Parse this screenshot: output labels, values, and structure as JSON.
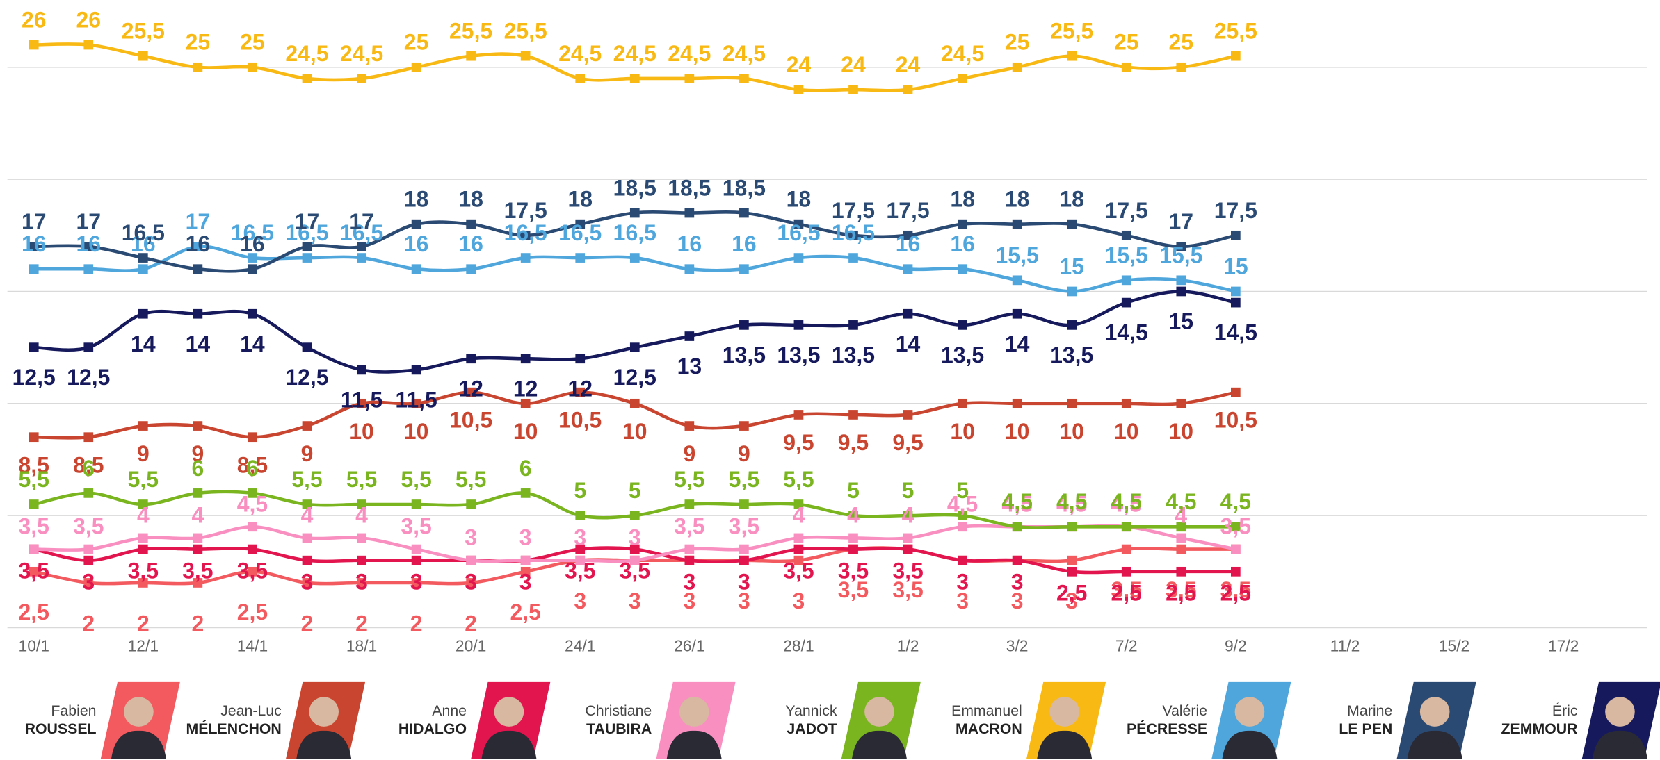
{
  "chart_data": {
    "type": "line",
    "categories": [
      "10/1",
      null,
      "12/1",
      null,
      "14/1",
      null,
      "18/1",
      null,
      "20/1",
      null,
      "24/1",
      null,
      "26/1",
      null,
      "28/1",
      null,
      "1/2",
      null,
      "3/2",
      null,
      "7/2",
      null,
      "9/2",
      null,
      "11/2",
      null,
      "15/2",
      null,
      "17/2"
    ],
    "ylim": [
      0,
      28
    ],
    "yticks": [
      0,
      5,
      10,
      15,
      20,
      25
    ],
    "grid": true,
    "series": [
      {
        "first_name": "Fabien",
        "name": "ROUSSEL",
        "color": "#f25a5f",
        "values": [
          2.5,
          2,
          2,
          2,
          2.5,
          2,
          2,
          2,
          2,
          2.5,
          3,
          3,
          3,
          3,
          3,
          3.5,
          3.5,
          3,
          3,
          3,
          3.5,
          3.5,
          3.5,
          null,
          null,
          null,
          null,
          null,
          null
        ],
        "value_labels": [
          "2,5",
          "2",
          "2",
          "2",
          "2,5",
          "2",
          "2",
          "2",
          "2",
          "2,5",
          "3",
          "3",
          "3",
          "3",
          "3",
          "3,5",
          "3,5",
          "3",
          "3",
          "3",
          "3,5",
          "3,5",
          "3,5",
          null,
          null,
          null,
          null,
          null,
          null
        ]
      },
      {
        "first_name": "Jean-Luc",
        "name": "MÉLENCHON",
        "color": "#c9452f",
        "values": [
          8.5,
          8.5,
          9,
          9,
          8.5,
          9,
          10,
          10,
          10.5,
          10,
          10.5,
          10,
          9,
          9,
          9.5,
          9.5,
          9.5,
          10,
          10,
          10,
          10,
          10,
          10.5,
          null,
          null,
          null,
          null,
          null,
          null
        ],
        "value_labels": [
          "8,5",
          "8,5",
          "9",
          "9",
          "8,5",
          "9",
          "10",
          "10",
          "10,5",
          "10",
          "10,5",
          "10",
          "9",
          "9",
          "9,5",
          "9,5",
          "9,5",
          "10",
          "10",
          "10",
          "10",
          "10",
          "10,5",
          null,
          null,
          null,
          null,
          null,
          null
        ]
      },
      {
        "first_name": "Anne",
        "name": "HIDALGO",
        "color": "#e2154f",
        "values": [
          3.5,
          3,
          3.5,
          3.5,
          3.5,
          3,
          3,
          3,
          3,
          3,
          3.5,
          3.5,
          3,
          3,
          3.5,
          3.5,
          3.5,
          3,
          3,
          2.5,
          2.5,
          2.5,
          2.5,
          null,
          null,
          null,
          null,
          null,
          null
        ],
        "value_labels": [
          "3,5",
          "3",
          "3,5",
          "3,5",
          "3,5",
          "3",
          "3",
          "3",
          "3",
          "3",
          "3,5",
          "3,5",
          "3",
          "3",
          "3,5",
          "3,5",
          "3,5",
          "3",
          "3",
          "2,5",
          "2,5",
          "2,5",
          "2,5",
          null,
          null,
          null,
          null,
          null,
          null
        ]
      },
      {
        "first_name": "Christiane",
        "name": "TAUBIRA",
        "color": "#f98fc0",
        "values": [
          3.5,
          3.5,
          4,
          4,
          4.5,
          4,
          4,
          3.5,
          3,
          3,
          3,
          3,
          3.5,
          3.5,
          4,
          4,
          4,
          4.5,
          4.5,
          4.5,
          4.5,
          4,
          3.5,
          null,
          null,
          null,
          null,
          null,
          null
        ],
        "value_labels": [
          "3,5",
          "3,5",
          "4",
          "4",
          "4,5",
          "4",
          "4",
          "3,5",
          "3",
          "3",
          "3",
          "3",
          "3,5",
          "3,5",
          "4",
          "4",
          "4",
          "4,5",
          "4,5",
          "4,5",
          "4,5",
          "4",
          "3,5",
          null,
          null,
          null,
          null,
          null,
          null
        ]
      },
      {
        "first_name": "Yannick",
        "name": "JADOT",
        "color": "#7ab520",
        "values": [
          5.5,
          6,
          5.5,
          6,
          6,
          5.5,
          5.5,
          5.5,
          5.5,
          6,
          5,
          5,
          5.5,
          5.5,
          5.5,
          5,
          5,
          5,
          4.5,
          4.5,
          4.5,
          4.5,
          4.5,
          null,
          null,
          null,
          null,
          null,
          null
        ],
        "value_labels": [
          "5,5",
          "6",
          "5,5",
          "6",
          "6",
          "5,5",
          "5,5",
          "5,5",
          "5,5",
          "6",
          "5",
          "5",
          "5,5",
          "5,5",
          "5,5",
          "5",
          "5",
          "5",
          "4,5",
          "4,5",
          "4,5",
          "4,5",
          "4,5",
          null,
          null,
          null,
          null,
          null,
          null
        ]
      },
      {
        "first_name": "Emmanuel",
        "name": "MACRON",
        "color": "#f9b914",
        "values": [
          26,
          26,
          25.5,
          25,
          25,
          24.5,
          24.5,
          25,
          25.5,
          25.5,
          24.5,
          24.5,
          24.5,
          24.5,
          24,
          24,
          24,
          24.5,
          25,
          25.5,
          25,
          25,
          25.5,
          null,
          null,
          null,
          null,
          null,
          null
        ],
        "value_labels": [
          "26",
          "26",
          "25,5",
          "25",
          "25",
          "24,5",
          "24,5",
          "25",
          "25,5",
          "25,5",
          "24,5",
          "24,5",
          "24,5",
          "24,5",
          "24",
          "24",
          "24",
          "24,5",
          "25",
          "25,5",
          "25",
          "25",
          "25,5",
          null,
          null,
          null,
          null,
          null,
          null
        ]
      },
      {
        "first_name": "Valérie",
        "name": "PÉCRESSE",
        "color": "#4ea6dc",
        "values": [
          16,
          16,
          16,
          17,
          16.5,
          16.5,
          16.5,
          16,
          16,
          16.5,
          16.5,
          16.5,
          16,
          16,
          16.5,
          16.5,
          16,
          16,
          15.5,
          15,
          15.5,
          15.5,
          15,
          null,
          null,
          null,
          null,
          null,
          null
        ],
        "value_labels": [
          "16",
          "16",
          "16",
          "17",
          "16,5",
          "16,5",
          "16,5",
          "16",
          "16",
          "16,5",
          "16,5",
          "16,5",
          "16",
          "16",
          "16,5",
          "16,5",
          "16",
          "16",
          "15,5",
          "15",
          "15,5",
          "15,5",
          "15",
          null,
          null,
          null,
          null,
          null,
          null
        ]
      },
      {
        "first_name": "Marine",
        "name": "LE PEN",
        "color": "#2b4a73",
        "values": [
          17,
          17,
          16.5,
          16,
          16,
          17,
          17,
          18,
          18,
          17.5,
          18,
          18.5,
          18.5,
          18.5,
          18,
          17.5,
          17.5,
          18,
          18,
          18,
          17.5,
          17,
          17.5,
          null,
          null,
          null,
          null,
          null,
          null
        ],
        "value_labels": [
          "17",
          "17",
          "16,5",
          "16",
          "16",
          "17",
          "17",
          "18",
          "18",
          "17,5",
          "18",
          "18,5",
          "18,5",
          "18,5",
          "18",
          "17,5",
          "17,5",
          "18",
          "18",
          "18",
          "17,5",
          "17",
          "17,5",
          null,
          null,
          null,
          null,
          null,
          null
        ]
      },
      {
        "first_name": "Éric",
        "name": "ZEMMOUR",
        "color": "#161a5c",
        "values": [
          12.5,
          12.5,
          14,
          14,
          14,
          12.5,
          11.5,
          11.5,
          12,
          12,
          12,
          12.5,
          13,
          13.5,
          13.5,
          13.5,
          14,
          13.5,
          14,
          13.5,
          14.5,
          15,
          14.5,
          null,
          null,
          null,
          null,
          null,
          null
        ],
        "value_labels": [
          "12,5",
          "12,5",
          "14",
          "14",
          "14",
          "12,5",
          "11,5",
          "11,5",
          "12",
          "12",
          "12",
          "12,5",
          "13",
          "13,5",
          "13,5",
          "13,5",
          "14",
          "13,5",
          "14",
          "13,5",
          "14,5",
          "15",
          "14,5",
          null,
          null,
          null,
          null,
          null,
          null
        ]
      }
    ]
  }
}
